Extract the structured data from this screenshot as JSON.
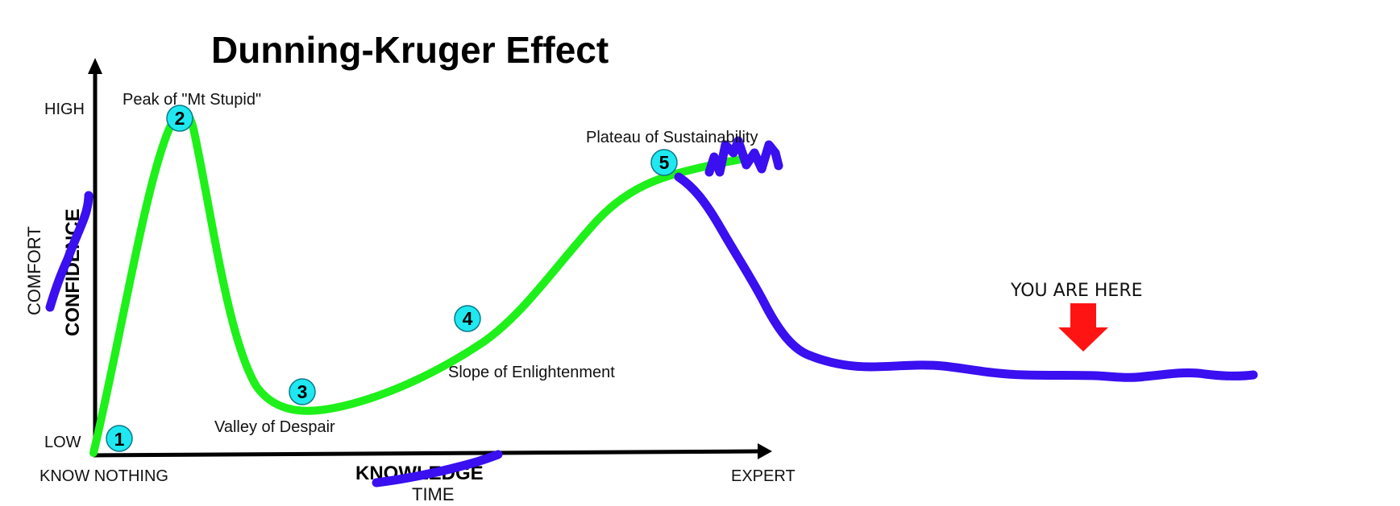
{
  "title": "Dunning-Kruger Effect",
  "y_axis": {
    "high_label": "HIGH",
    "low_label": "LOW",
    "main_label": "CONFIDENCE",
    "overwrite_label": "COMFORT"
  },
  "x_axis": {
    "start_label": "KNOW NOTHING",
    "end_label": "EXPERT",
    "main_label": "KNOWLEDGE",
    "overwrite_label": "TIME"
  },
  "stages": [
    {
      "number": "1",
      "label": ""
    },
    {
      "number": "2",
      "label": "Peak of \"Mt Stupid\""
    },
    {
      "number": "3",
      "label": "Valley of Despair"
    },
    {
      "number": "4",
      "label": "Slope of Enlightenment"
    },
    {
      "number": "5",
      "label": "Plateau of Sustainability"
    }
  ],
  "annotation": {
    "text": "YOU ARE HERE"
  },
  "colors": {
    "curve": "#1ef01a",
    "scribble": "#3a0ff0",
    "marker": "#1fe8f0",
    "arrow": "#ff1414",
    "axis": "#000000"
  }
}
